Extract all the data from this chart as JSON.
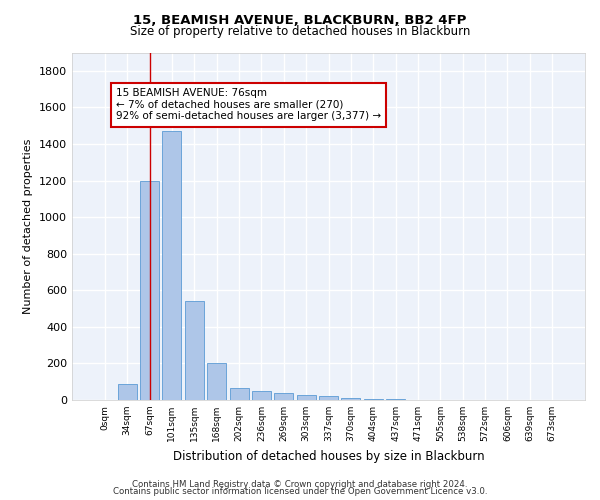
{
  "title1": "15, BEAMISH AVENUE, BLACKBURN, BB2 4FP",
  "title2": "Size of property relative to detached houses in Blackburn",
  "xlabel": "Distribution of detached houses by size in Blackburn",
  "ylabel": "Number of detached properties",
  "categories": [
    "0sqm",
    "34sqm",
    "67sqm",
    "101sqm",
    "135sqm",
    "168sqm",
    "202sqm",
    "236sqm",
    "269sqm",
    "303sqm",
    "337sqm",
    "370sqm",
    "404sqm",
    "437sqm",
    "471sqm",
    "505sqm",
    "538sqm",
    "572sqm",
    "606sqm",
    "639sqm",
    "673sqm"
  ],
  "values": [
    0,
    90,
    1200,
    1470,
    540,
    205,
    65,
    50,
    40,
    30,
    20,
    10,
    5,
    8,
    0,
    0,
    0,
    0,
    0,
    0,
    0
  ],
  "bar_color": "#aec6e8",
  "bar_edge_color": "#5b9bd5",
  "vline_x": 2.0,
  "vline_color": "#cc0000",
  "annotation_text": "15 BEAMISH AVENUE: 76sqm\n← 7% of detached houses are smaller (270)\n92% of semi-detached houses are larger (3,377) →",
  "annotation_box_color": "#ffffff",
  "annotation_box_edge": "#cc0000",
  "ylim": [
    0,
    1900
  ],
  "yticks": [
    0,
    200,
    400,
    600,
    800,
    1000,
    1200,
    1400,
    1600,
    1800
  ],
  "background_color": "#edf2fa",
  "grid_color": "#ffffff",
  "footer1": "Contains HM Land Registry data © Crown copyright and database right 2024.",
  "footer2": "Contains public sector information licensed under the Open Government Licence v3.0."
}
